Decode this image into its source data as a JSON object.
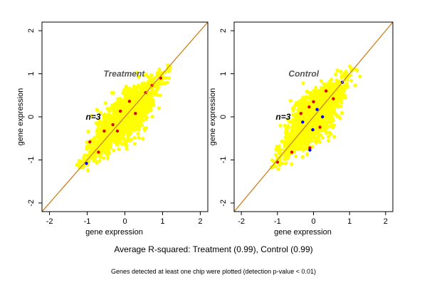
{
  "chart_data": [
    {
      "type": "scatter",
      "title": "Treatment",
      "annotation": "n=3",
      "xlabel": "gene expression",
      "ylabel": "gene expression",
      "xlim": [
        -2.2,
        2.2
      ],
      "ylim": [
        -2.2,
        2.2
      ],
      "xticks": [
        "-2",
        "-1",
        "0",
        "1",
        "2"
      ],
      "yticks": [
        "-2",
        "-1",
        "0",
        "1",
        "2"
      ],
      "reference_line": "y = x",
      "grid": false,
      "point_range": {
        "min": -1.2,
        "max": 1.2
      },
      "colors": {
        "points": "#ffff00",
        "outliers_red": "#e00000",
        "outliers_blue": "#0000e0",
        "line": "#d08020"
      },
      "outliers": [
        {
          "x": -0.93,
          "y": -0.58,
          "color": "red"
        },
        {
          "x": -0.55,
          "y": -0.33,
          "color": "red"
        },
        {
          "x": -0.32,
          "y": -0.18,
          "color": "red"
        },
        {
          "x": -0.12,
          "y": 0.13,
          "color": "red"
        },
        {
          "x": 0.12,
          "y": 0.36,
          "color": "red"
        },
        {
          "x": 0.55,
          "y": 0.56,
          "color": "red"
        },
        {
          "x": 0.72,
          "y": 0.73,
          "color": "red"
        },
        {
          "x": 0.95,
          "y": 0.9,
          "color": "red"
        },
        {
          "x": -1.02,
          "y": -1.08,
          "color": "blue"
        },
        {
          "x": -0.7,
          "y": -0.82,
          "color": "red"
        },
        {
          "x": 0.28,
          "y": 0.08,
          "color": "red"
        },
        {
          "x": -0.2,
          "y": -0.33,
          "color": "red"
        }
      ]
    },
    {
      "type": "scatter",
      "title": "Control",
      "annotation": "n=3",
      "xlabel": "gene expression",
      "ylabel": "gene expression",
      "xlim": [
        -2.2,
        2.2
      ],
      "ylim": [
        -2.2,
        2.2
      ],
      "xticks": [
        "-2",
        "-1",
        "0",
        "1",
        "2"
      ],
      "yticks": [
        "-2",
        "-1",
        "0",
        "1",
        "2"
      ],
      "reference_line": "y = x",
      "grid": false,
      "point_range": {
        "min": -1.2,
        "max": 1.2
      },
      "colors": {
        "points": "#ffff00",
        "outliers_red": "#e00000",
        "outliers_blue": "#0000e0",
        "line": "#d08020"
      },
      "outliers": [
        {
          "x": -0.35,
          "y": 0.08,
          "color": "red"
        },
        {
          "x": -0.12,
          "y": 0.23,
          "color": "red"
        },
        {
          "x": 0.0,
          "y": 0.35,
          "color": "red"
        },
        {
          "x": 0.1,
          "y": 0.17,
          "color": "blue"
        },
        {
          "x": -0.02,
          "y": -0.3,
          "color": "blue"
        },
        {
          "x": 0.18,
          "y": -0.24,
          "color": "red"
        },
        {
          "x": -0.1,
          "y": -0.72,
          "color": "red"
        },
        {
          "x": -0.1,
          "y": -0.77,
          "color": "blue"
        },
        {
          "x": -0.6,
          "y": -0.82,
          "color": "red"
        },
        {
          "x": 0.8,
          "y": 0.8,
          "color": "blue"
        },
        {
          "x": 0.55,
          "y": 0.42,
          "color": "red"
        },
        {
          "x": -0.3,
          "y": -0.12,
          "color": "blue"
        },
        {
          "x": 0.25,
          "y": 0.0,
          "color": "blue"
        },
        {
          "x": -1.0,
          "y": -1.05,
          "color": "red"
        },
        {
          "x": 0.35,
          "y": 0.6,
          "color": "red"
        }
      ]
    }
  ],
  "caption": {
    "main": "Average R-squared: Treatment (0.99), Control (0.99)",
    "sub": "Genes detected at least one chip were plotted (detection p-value < 0.01)"
  }
}
